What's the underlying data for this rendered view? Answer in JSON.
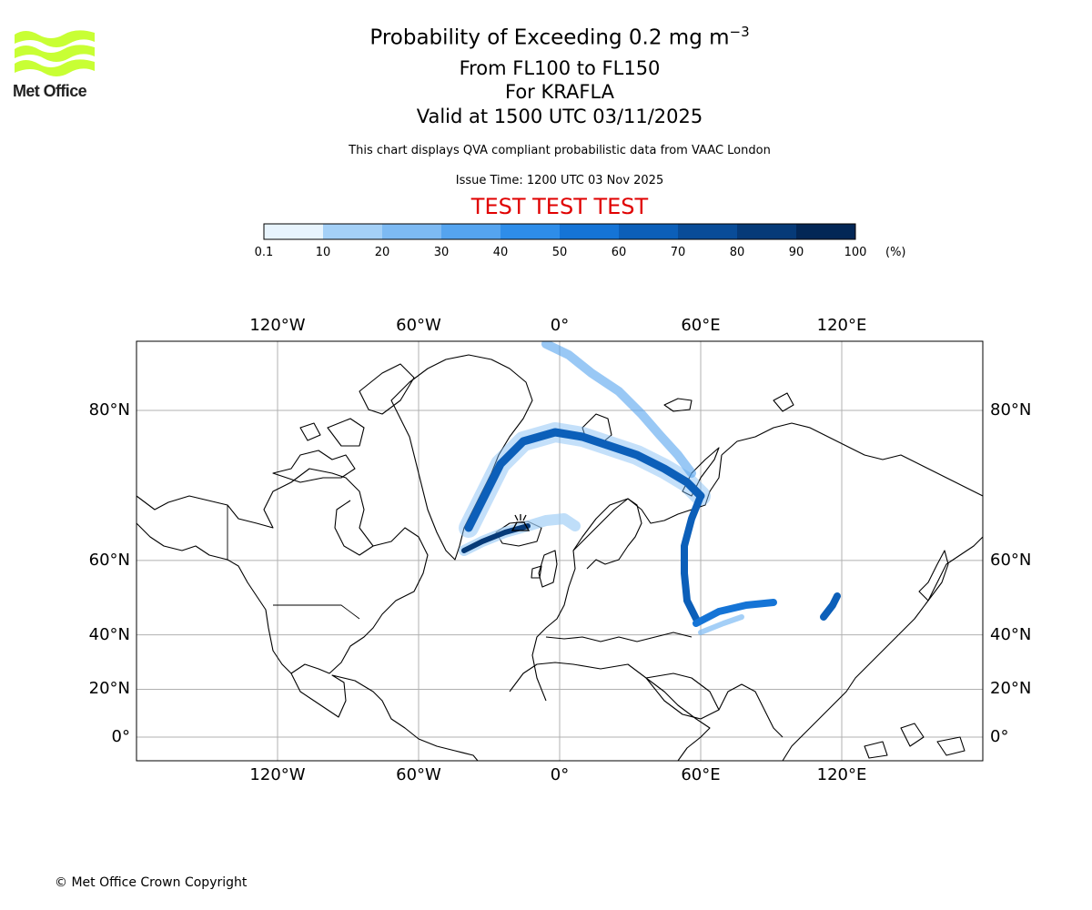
{
  "header": {
    "logo_text": "Met Office",
    "title": "Probability of Exceeding 0.2 mg m",
    "title_superscript": "−3",
    "levels": "From FL100 to FL150",
    "volcano": "For KRAFLA",
    "valid": "Valid at 1500 UTC 03/11/2025",
    "note": "This chart displays QVA compliant probabilistic data from VAAC London",
    "issue": "Issue Time: 1200 UTC 03 Nov 2025",
    "test_banner": "TEST TEST TEST"
  },
  "colorbar": {
    "unit": "(%)",
    "labels": [
      "0.1",
      "10",
      "20",
      "30",
      "40",
      "50",
      "60",
      "70",
      "80",
      "90",
      "100"
    ],
    "colors": [
      "#e8f4fd",
      "#c7e3fa",
      "#a4d0f7",
      "#7dbaf3",
      "#55a4ef",
      "#2e8de9",
      "#1574d6",
      "#0c5fb9",
      "#094c98",
      "#063a78",
      "#032756"
    ]
  },
  "map": {
    "lon_labels": [
      "120°W",
      "60°W",
      "0°",
      "60°E",
      "120°E"
    ],
    "lat_labels": [
      "80°N",
      "60°N",
      "40°N",
      "20°N",
      "0°"
    ],
    "lon_ticks": [
      -120,
      -60,
      0,
      60,
      120
    ],
    "lat_ticks": [
      80,
      60,
      40,
      20,
      0
    ],
    "lon_range": [
      -180,
      180
    ],
    "projection": "Mercator",
    "grid": true,
    "volcano_marker": {
      "lon": -16.8,
      "lat": 65.7,
      "icon": "volcano-icon"
    }
  },
  "footer": {
    "copyright": "© Met Office Crown Copyright"
  }
}
